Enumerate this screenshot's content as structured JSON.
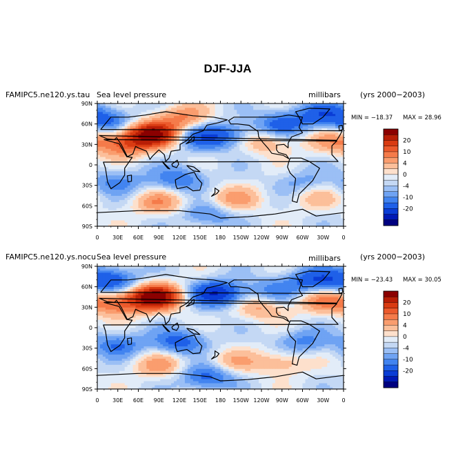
{
  "figure_title": "DJF-JJA",
  "colorbar": {
    "colors": [
      "#000080",
      "#0019b5",
      "#0a3dd6",
      "#1f60e8",
      "#4284f0",
      "#6fa3f3",
      "#9bbff5",
      "#c4d8f4",
      "#e2ecf8",
      "#fde0cc",
      "#fcbf9a",
      "#fa9d6e",
      "#f57b4a",
      "#ec5a2c",
      "#d93b12",
      "#b81e06",
      "#8b0000"
    ],
    "tick_labels": [
      "20",
      "10",
      "4",
      "0",
      "-4",
      "-10",
      "-20"
    ]
  },
  "land_color": "#000000",
  "chart_data": [
    {
      "type": "heatmap",
      "model": "FAMIPC5.ne120.ys.tau",
      "variable": "Sea level pressure",
      "units": "millibars",
      "years": "(yrs 2000−2003)",
      "min_label": "MIN = −18.37",
      "max_label": "MAX =  28.96",
      "min": -18.37,
      "max": 28.96,
      "ylabels": [
        "90N",
        "60N",
        "30N",
        "0",
        "30S",
        "60S",
        "90S"
      ],
      "xlabels": [
        "0",
        "30E",
        "60E",
        "90E",
        "120E",
        "150E",
        "180",
        "150W",
        "120W",
        "90W",
        "60W",
        "30W",
        "0"
      ],
      "xlim": [
        0,
        360
      ],
      "ylim": [
        -90,
        90
      ],
      "features": [
        {
          "lon": 80,
          "lat": 45,
          "amp": 26
        },
        {
          "lon": 40,
          "lat": 30,
          "amp": 12
        },
        {
          "lon": 125,
          "lat": 70,
          "amp": 10
        },
        {
          "lon": 345,
          "lat": 35,
          "amp": 8
        },
        {
          "lon": 155,
          "lat": 40,
          "amp": -12
        },
        {
          "lon": 195,
          "lat": 45,
          "amp": -8
        },
        {
          "lon": 270,
          "lat": 60,
          "amp": -12
        },
        {
          "lon": 15,
          "lat": 65,
          "amp": -10
        },
        {
          "lon": 330,
          "lat": 75,
          "amp": -12
        },
        {
          "lon": 245,
          "lat": 35,
          "amp": 8
        },
        {
          "lon": 120,
          "lat": -20,
          "amp": -10
        },
        {
          "lon": 30,
          "lat": -25,
          "amp": -8
        },
        {
          "lon": 300,
          "lat": -25,
          "amp": -5
        },
        {
          "lon": 90,
          "lat": -55,
          "amp": 9
        },
        {
          "lon": 200,
          "lat": -50,
          "amp": 8
        },
        {
          "lon": 320,
          "lat": -48,
          "amp": 5
        },
        {
          "lon": 160,
          "lat": -72,
          "amp": -8
        }
      ]
    },
    {
      "type": "heatmap",
      "model": "FAMIPC5.ne120.ys.nocu",
      "variable": "Sea level pressure",
      "units": "millibars",
      "years": "(yrs 2000−2003)",
      "min_label": "MIN = −23.43",
      "max_label": "MAX =  30.05",
      "min": -23.43,
      "max": 30.05,
      "ylabels": [
        "90N",
        "60N",
        "30N",
        "0",
        "30S",
        "60S",
        "90S"
      ],
      "xlabels": [
        "0",
        "30E",
        "60E",
        "90E",
        "120E",
        "150E",
        "180",
        "150W",
        "120W",
        "90W",
        "60W",
        "30W",
        "0"
      ],
      "xlim": [
        0,
        360
      ],
      "ylim": [
        -90,
        90
      ],
      "features": [
        {
          "lon": 85,
          "lat": 45,
          "amp": 28
        },
        {
          "lon": 30,
          "lat": 35,
          "amp": 12
        },
        {
          "lon": 330,
          "lat": 40,
          "amp": 10
        },
        {
          "lon": 175,
          "lat": 50,
          "amp": -20
        },
        {
          "lon": 20,
          "lat": 70,
          "amp": -14
        },
        {
          "lon": 320,
          "lat": 70,
          "amp": -14
        },
        {
          "lon": 260,
          "lat": 55,
          "amp": -8
        },
        {
          "lon": 240,
          "lat": 30,
          "amp": 8
        },
        {
          "lon": 120,
          "lat": -20,
          "amp": -12
        },
        {
          "lon": 30,
          "lat": -25,
          "amp": -10
        },
        {
          "lon": 300,
          "lat": -20,
          "amp": -8
        },
        {
          "lon": 270,
          "lat": -50,
          "amp": 7
        },
        {
          "lon": 90,
          "lat": -55,
          "amp": 8
        },
        {
          "lon": 200,
          "lat": -50,
          "amp": 6
        },
        {
          "lon": 160,
          "lat": -72,
          "amp": -12
        }
      ]
    }
  ]
}
